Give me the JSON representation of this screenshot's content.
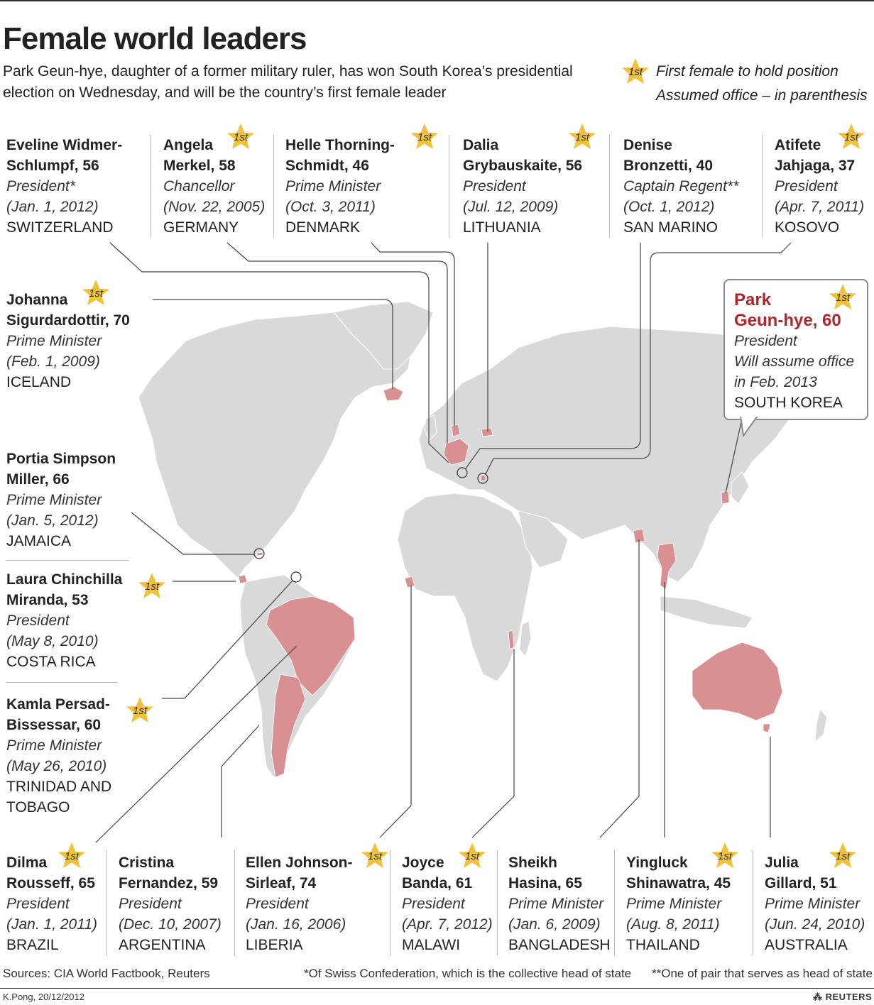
{
  "title": "Female world leaders",
  "subtitle": "Park Geun-hye, daughter of a former military ruler, has won South Korea’s presidential election on Wednesday, and will be the country’s first female leader",
  "legend": {
    "star_label": "1st",
    "first_female": "First female to hold position",
    "assumed_office": "Assumed office – in parenthesis"
  },
  "leaders": [
    {
      "name1": "Eveline Widmer-",
      "name2": "Schlumpf, 56",
      "role": "President*",
      "date": "(Jan. 1, 2012)",
      "country1": "SWITZERLAND",
      "first": false
    },
    {
      "name1": "Angela",
      "name2": "Merkel, 58",
      "role": "Chancellor",
      "date": "(Nov. 22, 2005)",
      "country1": "GERMANY",
      "first": true
    },
    {
      "name1": "Helle Thorning-",
      "name2": "Schmidt, 46",
      "role": "Prime Minister",
      "date": "(Oct. 3, 2011)",
      "country1": "DENMARK",
      "first": true
    },
    {
      "name1": "Dalia",
      "name2": "Grybauskaite, 56",
      "role": "President",
      "date": "(Jul. 12, 2009)",
      "country1": "LITHUANIA",
      "first": true
    },
    {
      "name1": "Denise",
      "name2": "Bronzetti, 40",
      "role": "Captain Regent**",
      "date": "(Oct. 1, 2012)",
      "country1": "SAN MARINO",
      "first": false
    },
    {
      "name1": "Atifete",
      "name2": "Jahjaga, 37",
      "role": "President",
      "date": "(Apr. 7, 2011)",
      "country1": "KOSOVO",
      "first": true
    },
    {
      "name1": "Johanna",
      "name2": "Sigurdardottir, 70",
      "role": "Prime Minister",
      "date": "(Feb. 1, 2009)",
      "country1": "ICELAND",
      "first": true
    },
    {
      "name1": "Portia Simpson",
      "name2": "Miller, 66",
      "role": "Prime Minister",
      "date": "(Jan. 5, 2012)",
      "country1": "JAMAICA",
      "first": false
    },
    {
      "name1": "Laura Chinchilla",
      "name2": "Miranda, 53",
      "role": "President",
      "date": "(May 8, 2010)",
      "country1": "COSTA RICA",
      "first": true
    },
    {
      "name1": "Kamla Persad-",
      "name2": "Bissessar, 60",
      "role": "Prime Minister",
      "date": "(May 26, 2010)",
      "country1": "TRINIDAD AND",
      "country2": "TOBAGO",
      "first": true
    },
    {
      "name1": "Dilma",
      "name2": "Rousseff, 65",
      "role": "President",
      "date": "(Jan. 1, 2011)",
      "country1": "BRAZIL",
      "first": true
    },
    {
      "name1": "Cristina",
      "name2": "Fernandez, 59",
      "role": "President",
      "date": "(Dec. 10, 2007)",
      "country1": "ARGENTINA",
      "first": false
    },
    {
      "name1": "Ellen Johnson-",
      "name2": "Sirleaf, 74",
      "role": "President",
      "date": "(Jan. 16, 2006)",
      "country1": "LIBERIA",
      "first": true
    },
    {
      "name1": "Joyce",
      "name2": "Banda, 61",
      "role": "President",
      "date": "(Apr. 7, 2012)",
      "country1": "MALAWI",
      "first": true
    },
    {
      "name1": "Sheikh",
      "name2": "Hasina, 65",
      "role": "Prime Minister",
      "date": "(Jan. 6, 2009)",
      "country1": "BANGLADESH",
      "first": false
    },
    {
      "name1": "Yingluck",
      "name2": "Shinawatra, 45",
      "role": "Prime Minister",
      "date": "(Aug. 8, 2011)",
      "country1": "THAILAND",
      "first": true
    },
    {
      "name1": "Julia",
      "name2": "Gillard, 51",
      "role": "Prime Minister",
      "date": "(Jun. 24, 2010)",
      "country1": "AUSTRALIA",
      "first": true
    }
  ],
  "featured": {
    "name1": "Park",
    "name2": "Geun-hye, 60",
    "role": "President",
    "note1": "Will assume office",
    "note2": "in Feb. 2013",
    "country": "SOUTH KOREA",
    "first": true
  },
  "footer": {
    "sources": "Sources: CIA World Factbook, Reuters",
    "note1": "*Of Swiss Confederation, which is the collective head of state",
    "note2": "**One of pair that serves as head of state",
    "credit": "K.Pong, 20/12/2012",
    "brand": "REUTERS"
  },
  "colors": {
    "land": "#d9d9d9",
    "highlight": "#d99092",
    "featured": "#b0262c",
    "star": "#f0c23c"
  }
}
